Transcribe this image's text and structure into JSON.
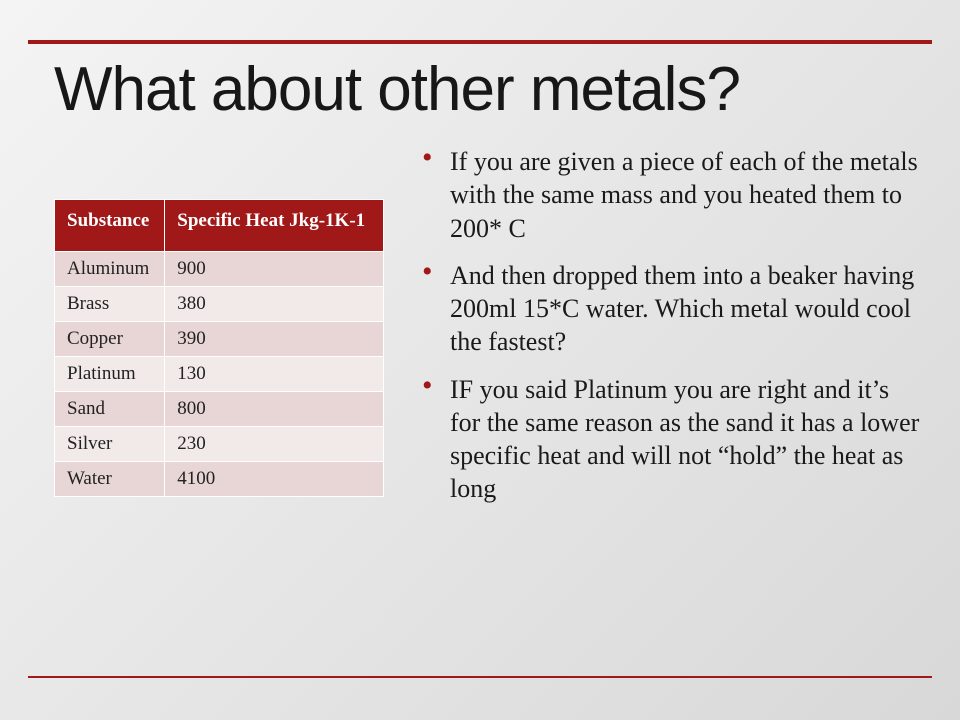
{
  "accent_color": "#a01818",
  "title": "What about other metals?",
  "table": {
    "columns": [
      "Substance",
      "Specific Heat Jkg-1K-1"
    ],
    "rows": [
      [
        "Aluminum",
        "900"
      ],
      [
        "Brass",
        "380"
      ],
      [
        "Copper",
        "390"
      ],
      [
        "Platinum",
        "130"
      ],
      [
        "Sand",
        "800"
      ],
      [
        "Silver",
        "230"
      ],
      [
        "Water",
        "4100"
      ]
    ],
    "header_bg": "#a01818",
    "header_color": "#ffffff",
    "row_bg_odd": "#e8d5d5",
    "row_bg_even": "#f2eae9",
    "fontsize": 19
  },
  "bullets": [
    "If you are given a piece of each of the metals with the same mass and you heated them to 200* C",
    "And then dropped them into a beaker having 200ml 15*C water. Which metal would cool the fastest?",
    "IF you said Platinum you are right and it’s for the same reason as the sand it has a lower specific heat and will not “hold” the heat as long"
  ],
  "bullet_fontsize": 26,
  "bullet_color": "#1a1a1a",
  "bullet_marker_color": "#a01818"
}
